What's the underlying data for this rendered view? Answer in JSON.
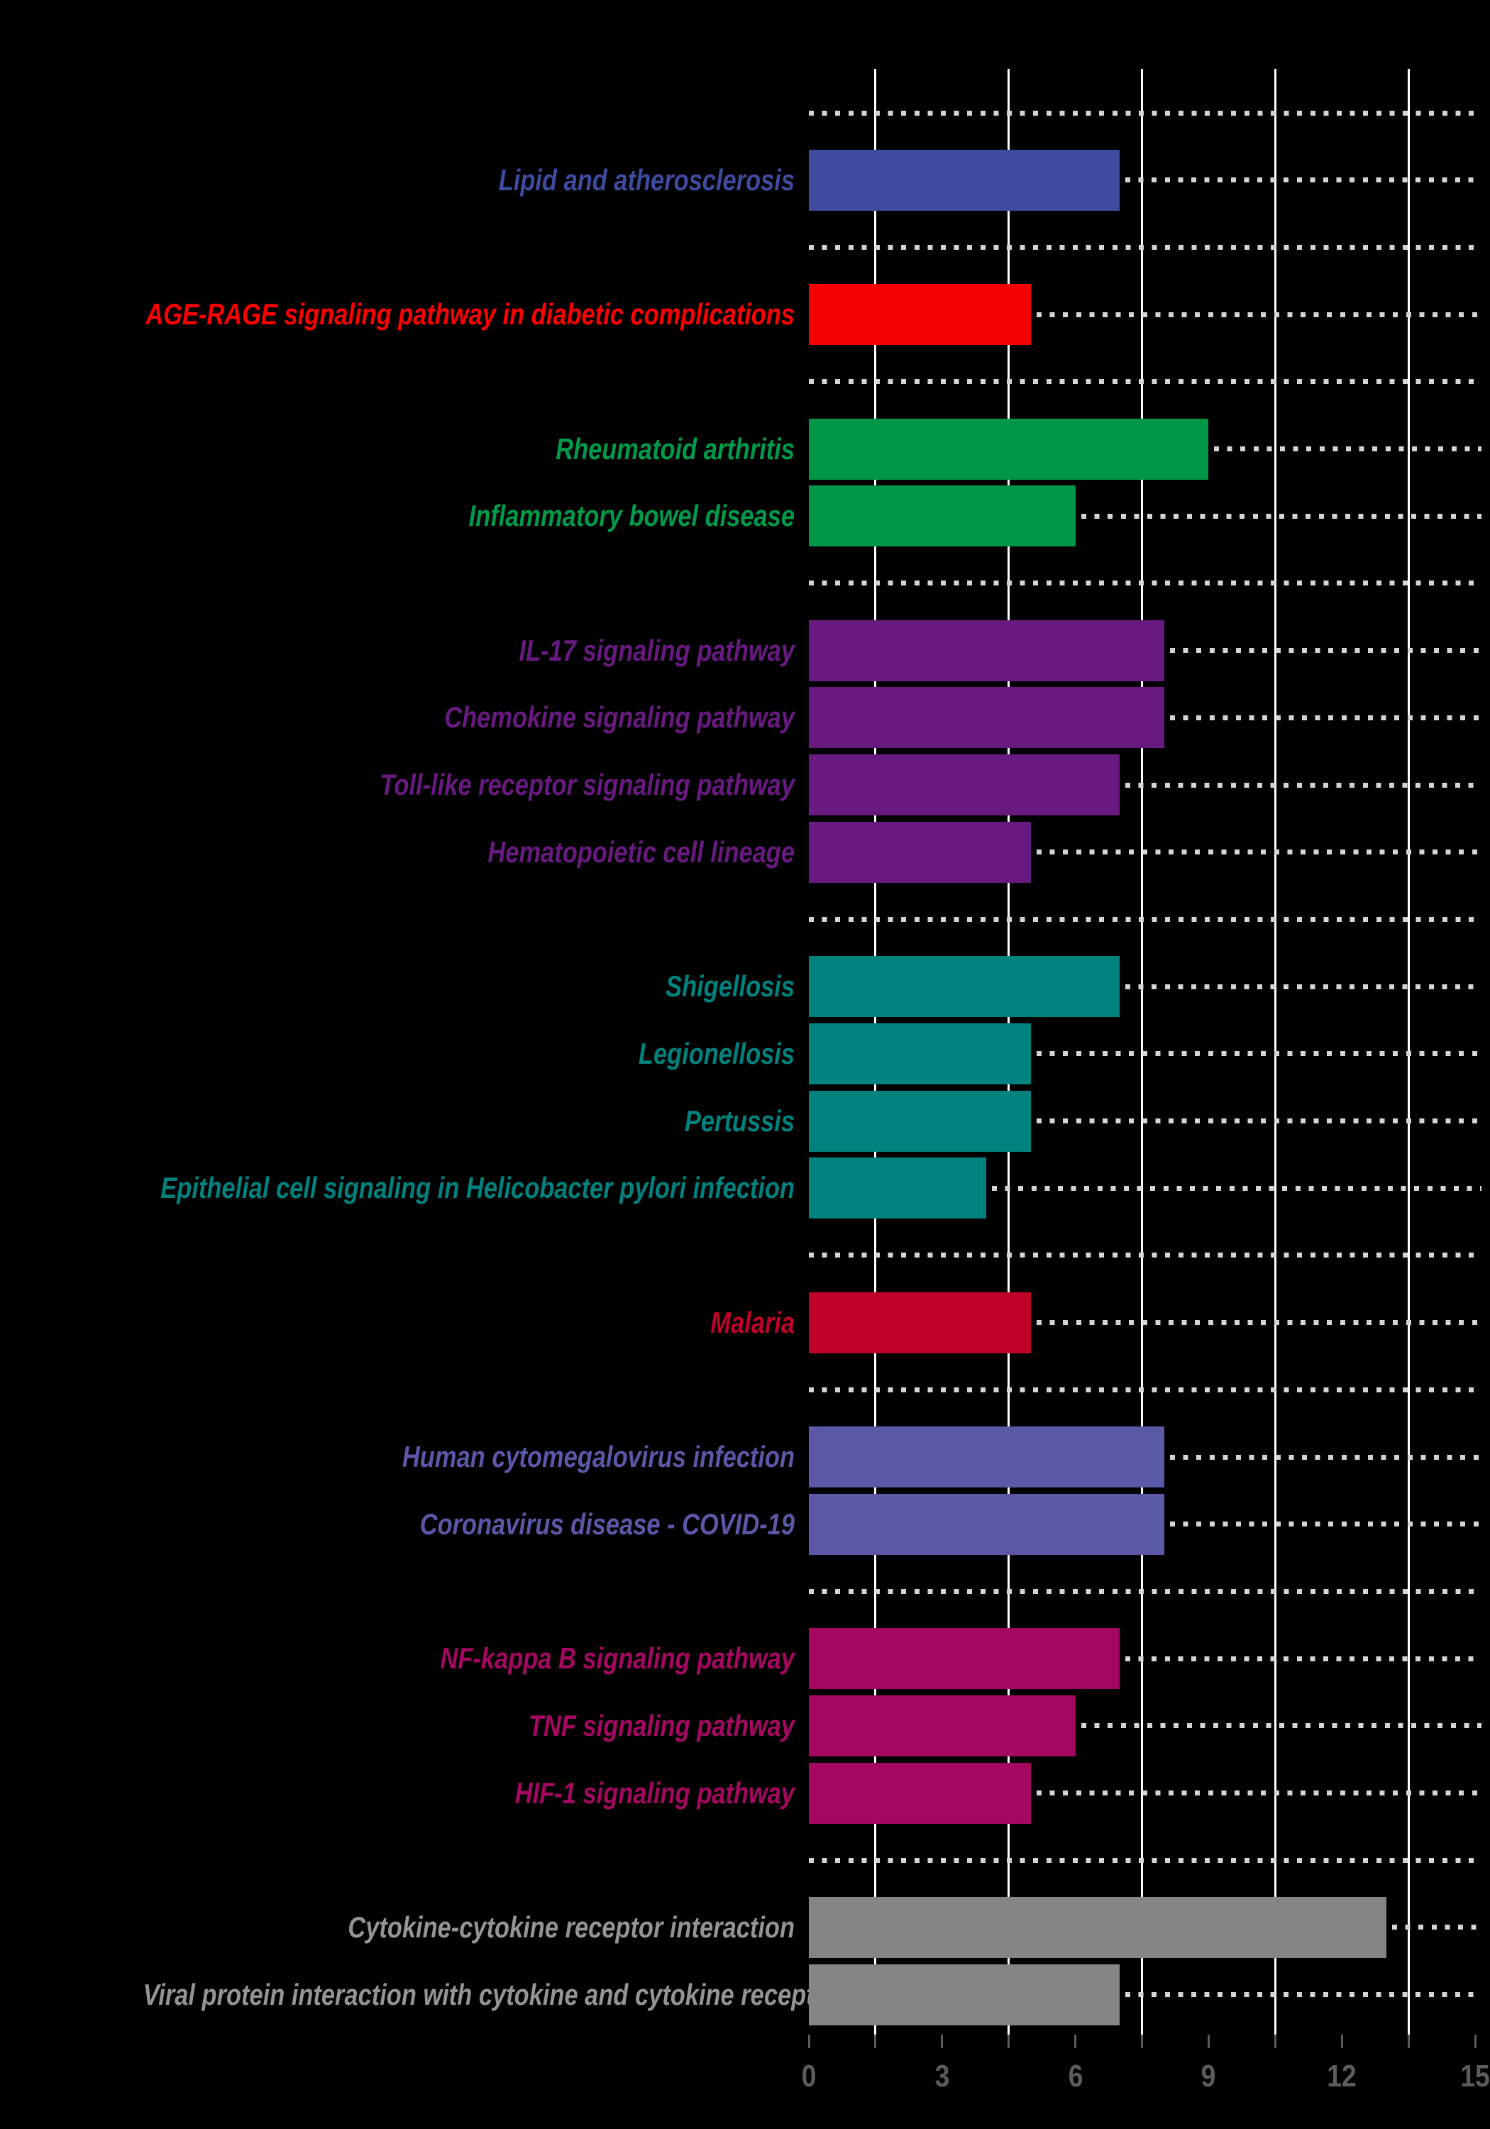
{
  "chart_data": {
    "type": "bar",
    "orientation": "horizontal",
    "title": "",
    "xlabel": "",
    "ylabel": "",
    "x_ticks": [
      0,
      3,
      6,
      9,
      12,
      15
    ],
    "x_minor_step": 1.5,
    "xlim": [
      0,
      15.15
    ],
    "gridlines_x": [
      1.5,
      4.5,
      7.5,
      10.5,
      13.5
    ],
    "grid_on": true,
    "legend": "none",
    "background_color": "#000000",
    "gridline_color": "#FFFFFF",
    "dotted_line_color": "#D5D5D5",
    "axis_text_color": "#5C5C5C",
    "groups": [
      {
        "name": "lipid",
        "color": "#3E4B9E",
        "label_color": "#3E4B9E",
        "items": [
          {
            "label": "Lipid and atherosclerosis",
            "value": 7
          }
        ]
      },
      {
        "name": "diabetic-complications",
        "color": "#F40000",
        "label_color": "#FF0000",
        "items": [
          {
            "label": "AGE-RAGE signaling pathway in diabetic complications",
            "value": 5
          }
        ]
      },
      {
        "name": "autoimmune-inflammatory",
        "color": "#009648",
        "label_color": "#009B4A",
        "items": [
          {
            "label": "Rheumatoid arthritis",
            "value": 9
          },
          {
            "label": "Inflammatory bowel disease",
            "value": 6
          }
        ]
      },
      {
        "name": "immune-signaling",
        "color": "#691A80",
        "label_color": "#691A80",
        "items": [
          {
            "label": "IL-17 signaling pathway",
            "value": 8
          },
          {
            "label": "Chemokine signaling pathway",
            "value": 8
          },
          {
            "label": "Toll-like receptor signaling pathway",
            "value": 7
          },
          {
            "label": "Hematopoietic cell lineage",
            "value": 5
          }
        ]
      },
      {
        "name": "bacterial-infection",
        "color": "#00827E",
        "label_color": "#00827E",
        "items": [
          {
            "label": "Shigellosis",
            "value": 7
          },
          {
            "label": "Legionellosis",
            "value": 5
          },
          {
            "label": "Pertussis",
            "value": 5
          },
          {
            "label": "Epithelial cell signaling in Helicobacter pylori infection",
            "value": 4
          }
        ]
      },
      {
        "name": "parasitic-infection",
        "color": "#C00128",
        "label_color": "#C00128",
        "items": [
          {
            "label": "Malaria",
            "value": 5
          }
        ]
      },
      {
        "name": "viral-infection",
        "color": "#5B58A7",
        "label_color": "#5B58A7",
        "items": [
          {
            "label": "Human cytomegalovirus infection",
            "value": 8
          },
          {
            "label": "Coronavirus disease - COVID-19",
            "value": 8
          }
        ]
      },
      {
        "name": "core-signaling",
        "color": "#A50861",
        "label_color": "#A50861",
        "items": [
          {
            "label": "NF-kappa B signaling pathway",
            "value": 7
          },
          {
            "label": "TNF signaling pathway",
            "value": 6
          },
          {
            "label": "HIF-1 signaling pathway",
            "value": 5
          }
        ]
      },
      {
        "name": "cytokine-receptor",
        "color": "#858585",
        "label_color": "#949494",
        "items": [
          {
            "label": "Cytokine-cytokine receptor interaction",
            "value": 13
          },
          {
            "label": "Viral protein interaction with cytokine and cytokine receptor",
            "value": 7
          }
        ]
      }
    ]
  },
  "axis": {
    "tick_labels": [
      "0",
      "3",
      "6",
      "9",
      "12",
      "15"
    ]
  }
}
